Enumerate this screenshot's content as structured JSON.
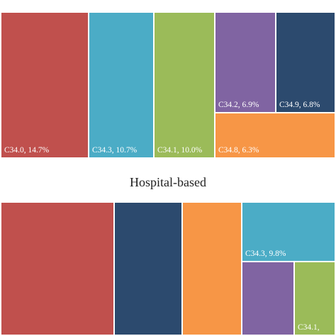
{
  "chart_data": [
    {
      "type": "treemap",
      "title": "",
      "colors": [
        "#c0504d",
        "#4bacc6",
        "#9bbb59",
        "#8064a2",
        "#2c4a6e",
        "#f79646"
      ],
      "cells": [
        {
          "label": "C34.0, 14.7%",
          "code": "C34.0",
          "percent": 14.7,
          "color": "#c0504d"
        },
        {
          "label": "C34.3, 10.7%",
          "code": "C34.3",
          "percent": 10.7,
          "color": "#4bacc6"
        },
        {
          "label": "C34.1, 10.0%",
          "code": "C34.1",
          "percent": 10.0,
          "color": "#9bbb59"
        },
        {
          "label": "C34.2, 6.9%",
          "code": "C34.2",
          "percent": 6.9,
          "color": "#8064a2"
        },
        {
          "label": "C34.9, 6.8%",
          "code": "C34.9",
          "percent": 6.8,
          "color": "#2c4a6e"
        },
        {
          "label": "C34.8, 6.3%",
          "code": "C34.8",
          "percent": 6.3,
          "color": "#f79646"
        }
      ]
    },
    {
      "type": "treemap",
      "title": "Hospital-based",
      "cells": [
        {
          "label": "",
          "color": "#c0504d"
        },
        {
          "label": "",
          "color": "#2c4a6e"
        },
        {
          "label": "",
          "color": "#f79646"
        },
        {
          "label": "C34.3, 9.8%",
          "code": "C34.3",
          "percent": 9.8,
          "color": "#4bacc6"
        },
        {
          "label": "",
          "color": "#8064a2"
        },
        {
          "label": "C34.1,",
          "code": "C34.1",
          "color": "#9bbb59"
        }
      ]
    }
  ]
}
